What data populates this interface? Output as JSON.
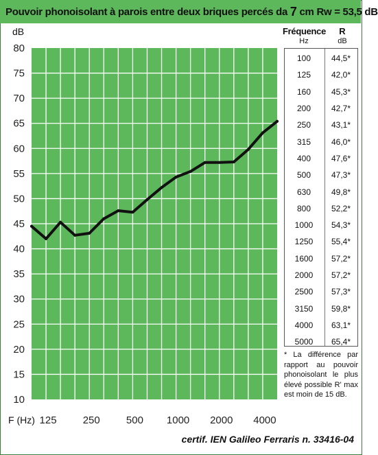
{
  "title": {
    "prefix": "Pouvoir phonoisolant à parois entre deux briques percés da",
    "value": "7",
    "suffix": "cm Rw = 53,5 dB"
  },
  "y_unit": "dB",
  "x_unit": "F (Hz)",
  "table": {
    "header_freq": "Fréquence",
    "header_freq_unit": "Hz",
    "header_r": "R",
    "header_r_unit": "dB",
    "rows": [
      {
        "f": "100",
        "r": "44,5*"
      },
      {
        "f": "125",
        "r": "42,0*"
      },
      {
        "f": "160",
        "r": "45,3*"
      },
      {
        "f": "200",
        "r": "42,7*"
      },
      {
        "f": "250",
        "r": "43,1*"
      },
      {
        "f": "315",
        "r": "46,0*"
      },
      {
        "f": "400",
        "r": "47,6*"
      },
      {
        "f": "500",
        "r": "47,3*"
      },
      {
        "f": "630",
        "r": "49,8*"
      },
      {
        "f": "800",
        "r": "52,2*"
      },
      {
        "f": "1000",
        "r": "54,3*"
      },
      {
        "f": "1250",
        "r": "55,4*"
      },
      {
        "f": "1600",
        "r": "57,2*"
      },
      {
        "f": "2000",
        "r": "57,2*"
      },
      {
        "f": "2500",
        "r": "57,3*"
      },
      {
        "f": "3150",
        "r": "59,8*"
      },
      {
        "f": "4000",
        "r": "63,1*"
      },
      {
        "f": "5000",
        "r": "65,4*"
      }
    ]
  },
  "note": "* La différence par rapport au pouvoir phonoisolant le plus élevé possible R' max est moin de 15 dB.",
  "certif": "certif. IEN Galileo Ferraris n. 33416-04",
  "colors": {
    "title_bg": "#5cb85a",
    "plot_bg": "#5cb85a",
    "grid": "#ffffff",
    "line": "#111111"
  },
  "chart_data": {
    "type": "line",
    "x": [
      100,
      125,
      160,
      200,
      250,
      315,
      400,
      500,
      630,
      800,
      1000,
      1250,
      1600,
      2000,
      2500,
      3150,
      4000,
      5000
    ],
    "values": [
      44.5,
      42.0,
      45.3,
      42.7,
      43.1,
      46.0,
      47.6,
      47.3,
      49.8,
      52.2,
      54.3,
      55.4,
      57.2,
      57.2,
      57.3,
      59.8,
      63.1,
      65.4
    ],
    "x_scale": "log (third-octave bands)",
    "x_tick_labels": [
      "125",
      "250",
      "500",
      "1000",
      "2000",
      "4000"
    ],
    "x_tick_values": [
      125,
      250,
      500,
      1000,
      2000,
      4000
    ],
    "y_ticks": [
      10,
      15,
      20,
      25,
      30,
      35,
      40,
      45,
      50,
      55,
      60,
      65,
      70,
      75,
      80
    ],
    "ylim": [
      10,
      80
    ],
    "xlabel": "F (Hz)",
    "ylabel": "dB",
    "grid": true
  }
}
